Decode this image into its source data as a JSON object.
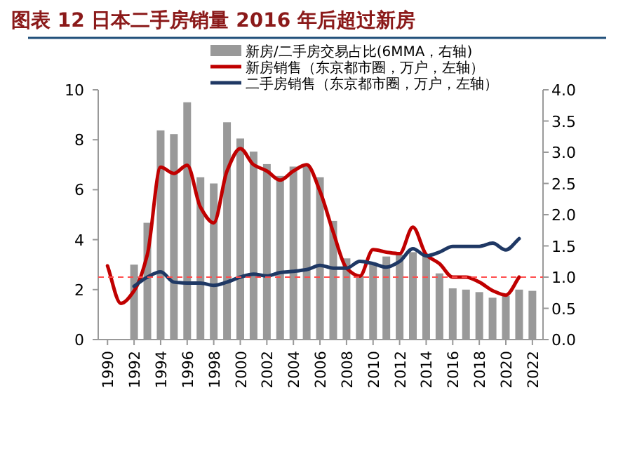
{
  "chart_data": {
    "type": "bar",
    "title": "图表 12 日本二手房销量 2016 年后超过新房",
    "xlim": [
      1989.3,
      2022.8
    ],
    "xticks": [
      1990,
      1992,
      1994,
      1996,
      1998,
      2000,
      2002,
      2004,
      2006,
      2008,
      2010,
      2012,
      2014,
      2016,
      2018,
      2020,
      2022
    ],
    "ylim": [
      0,
      10
    ],
    "yticks": [
      0,
      2,
      4,
      6,
      8,
      10
    ],
    "y2lim": [
      0,
      4
    ],
    "y2ticks": [
      {
        "value": 0,
        "label": "0.0"
      },
      {
        "value": 0.5,
        "label": "0.5"
      },
      {
        "value": 1,
        "label": "1.0"
      },
      {
        "value": 1.5,
        "label": "1.5"
      },
      {
        "value": 2,
        "label": "2.0"
      },
      {
        "value": 2.5,
        "label": "2.5"
      },
      {
        "value": 3,
        "label": "3.0"
      },
      {
        "value": 3.5,
        "label": "3.5"
      },
      {
        "value": 4,
        "label": "4.0"
      }
    ],
    "legend": "top",
    "ref_lines": [
      {
        "axis": "y2",
        "value": 1,
        "color": "#ff4d4d",
        "line_style": "dashed"
      }
    ],
    "series": [
      {
        "axis": "y2",
        "name": "新房/二手房交易占比(6MMA，右轴)",
        "color": "#999999",
        "x": [
          1992,
          1993,
          1994,
          1995,
          1996,
          1997,
          1998,
          1999,
          2000,
          2001,
          2002,
          2003,
          2004,
          2005,
          2006,
          2007,
          2008,
          2009,
          2010,
          2011,
          2012,
          2013,
          2014,
          2015,
          2016,
          2017,
          2018,
          2019,
          2020,
          2021,
          2022
        ],
        "values": [
          1.2,
          1.87,
          3.35,
          3.29,
          3.8,
          2.6,
          2.5,
          3.48,
          3.22,
          3.01,
          2.81,
          2.62,
          2.77,
          2.8,
          2.6,
          1.9,
          1.3,
          1.02,
          1.2,
          1.33,
          1.36,
          1.4,
          1.35,
          1.06,
          0.82,
          0.8,
          0.76,
          0.67,
          0.7,
          0.8,
          0.78
        ]
      },
      {
        "type": "line",
        "name": "新房销售（东京都市圈，万户，左轴）",
        "color": "#c00000",
        "x": [
          1990,
          1991,
          1992,
          1993,
          1994,
          1995,
          1996,
          1997,
          1998,
          1999,
          2000,
          2001,
          2002,
          2003,
          2004,
          2005,
          2006,
          2007,
          2008,
          2009,
          2010,
          2011,
          2012,
          2013,
          2014,
          2015,
          2016,
          2017,
          2018,
          2019,
          2020,
          2021
        ],
        "values": [
          2.95,
          1.45,
          1.95,
          3.4,
          6.9,
          6.65,
          6.98,
          5.3,
          4.67,
          6.75,
          7.65,
          7.0,
          6.75,
          6.38,
          6.75,
          7.0,
          5.94,
          4.3,
          2.86,
          2.54,
          3.6,
          3.5,
          3.44,
          4.5,
          3.4,
          3.04,
          2.5,
          2.5,
          2.3,
          1.96,
          1.78,
          2.5
        ]
      },
      {
        "type": "line",
        "name": "二手房销售（东京都市圈，万户，左轴）",
        "color": "#1f3864",
        "x": [
          1992,
          1993,
          1994,
          1995,
          1996,
          1997,
          1998,
          1999,
          2000,
          2001,
          2002,
          2003,
          2004,
          2005,
          2006,
          2007,
          2008,
          2009,
          2010,
          2011,
          2012,
          2013,
          2014,
          2015,
          2016,
          2017,
          2018,
          2019,
          2020,
          2021
        ],
        "values": [
          2.13,
          2.5,
          2.71,
          2.3,
          2.26,
          2.26,
          2.17,
          2.3,
          2.5,
          2.62,
          2.55,
          2.68,
          2.73,
          2.8,
          2.97,
          2.86,
          2.86,
          3.13,
          3.04,
          2.9,
          3.13,
          3.64,
          3.35,
          3.5,
          3.73,
          3.73,
          3.73,
          3.86,
          3.59,
          4.04
        ]
      }
    ]
  }
}
